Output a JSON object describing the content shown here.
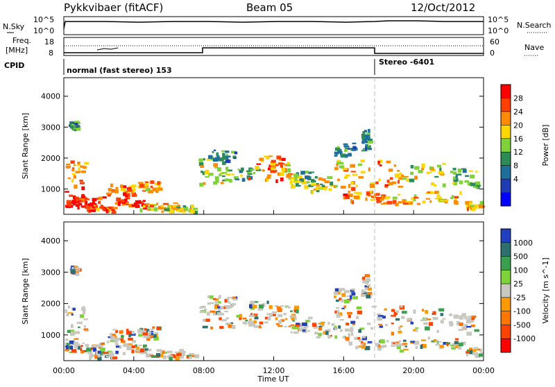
{
  "header": {
    "radar": "Pykkvibaer (fitACF)",
    "beam": "Beam 05",
    "date": "12/Oct/2012"
  },
  "top_panels": {
    "nsky_label": "N.Sky",
    "nsearch_label": "N.Search",
    "freq_label_1": "Freq.",
    "freq_label_2": "[MHz]",
    "nave_label": "Nave",
    "cpid_label": "CPID",
    "nsky_ticks": [
      "10^5",
      "10^0"
    ],
    "nsearch_ticks": [
      "10^5",
      "10^0"
    ],
    "freq_ticks": [
      "18",
      "8"
    ],
    "nave_ticks": [
      "60",
      "0"
    ],
    "cpid_segments": [
      "normal (fast stereo) 153",
      "Stereo -6401"
    ]
  },
  "chart_data": [
    {
      "type": "heatmap",
      "title": "",
      "xlabel": "Time UT",
      "ylabel": "Slant Range [km]",
      "x_ticks": [
        "00:00",
        "04:00",
        "08:00",
        "12:00",
        "16:00",
        "20:00",
        "00:00"
      ],
      "y_ticks": [
        "1000",
        "2000",
        "3000",
        "4000"
      ],
      "ylim": [
        180,
        4600
      ],
      "colorbar_label": "Power [dB]",
      "colorbar_ticks": [
        "28",
        "24",
        "20",
        "16",
        "12",
        "8",
        "4"
      ],
      "colorbar_colors": [
        "#ff0000",
        "#ff4000",
        "#ff8c00",
        "#ffd700",
        "#7fd23a",
        "#2e8b57",
        "#1f6f9c",
        "#1e3cb4",
        "#0000ff"
      ]
    },
    {
      "type": "heatmap",
      "title": "",
      "xlabel": "Time UT",
      "ylabel": "Slant Range [km]",
      "x_ticks": [
        "00:00",
        "04:00",
        "08:00",
        "12:00",
        "16:00",
        "20:00",
        "00:00"
      ],
      "y_ticks": [
        "1000",
        "2000",
        "3000",
        "4000"
      ],
      "ylim": [
        180,
        4600
      ],
      "colorbar_label": "Velocity [m s^-1]",
      "colorbar_ticks": [
        "1000",
        "500",
        "100",
        "25",
        "-25",
        "-100",
        "-500",
        "-1000"
      ],
      "colorbar_colors": [
        "#2040c0",
        "#2e6f6f",
        "#3aa050",
        "#7fd23a",
        "#c8c8c0",
        "#ff9900",
        "#ff7700",
        "#ff4400",
        "#ff0000"
      ]
    }
  ]
}
